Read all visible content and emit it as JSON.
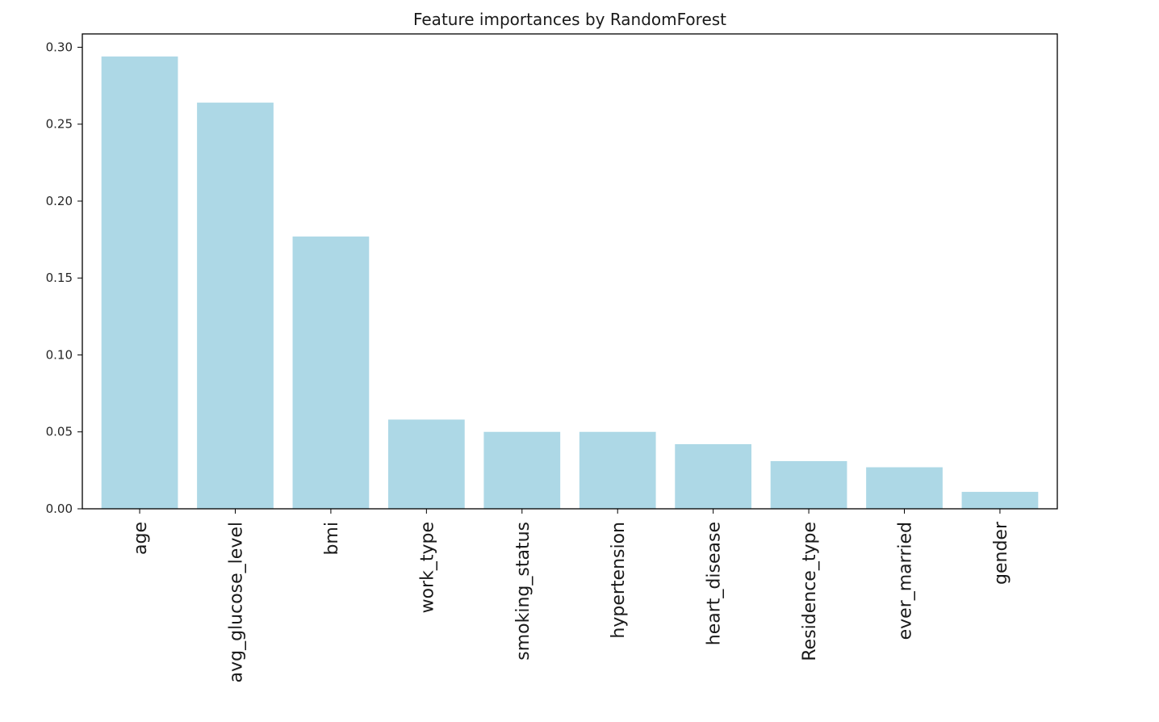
{
  "chart_data": {
    "type": "bar",
    "title": "Feature importances by RandomForest",
    "xlabel": "",
    "ylabel": "",
    "categories": [
      "age",
      "avg_glucose_level",
      "bmi",
      "work_type",
      "smoking_status",
      "hypertension",
      "heart_disease",
      "Residence_type",
      "ever_married",
      "gender"
    ],
    "values": [
      0.294,
      0.264,
      0.177,
      0.058,
      0.05,
      0.05,
      0.042,
      0.031,
      0.027,
      0.011
    ],
    "ylim": [
      0,
      0.30866
    ],
    "yticks": [
      "0.00",
      "0.05",
      "0.10",
      "0.15",
      "0.20",
      "0.25",
      "0.30"
    ],
    "grid": false,
    "legend": "none",
    "x_label_rotation": "vertical",
    "colors": {
      "bar": "#add8e6",
      "axis": "#000000",
      "text": "#262626"
    }
  }
}
